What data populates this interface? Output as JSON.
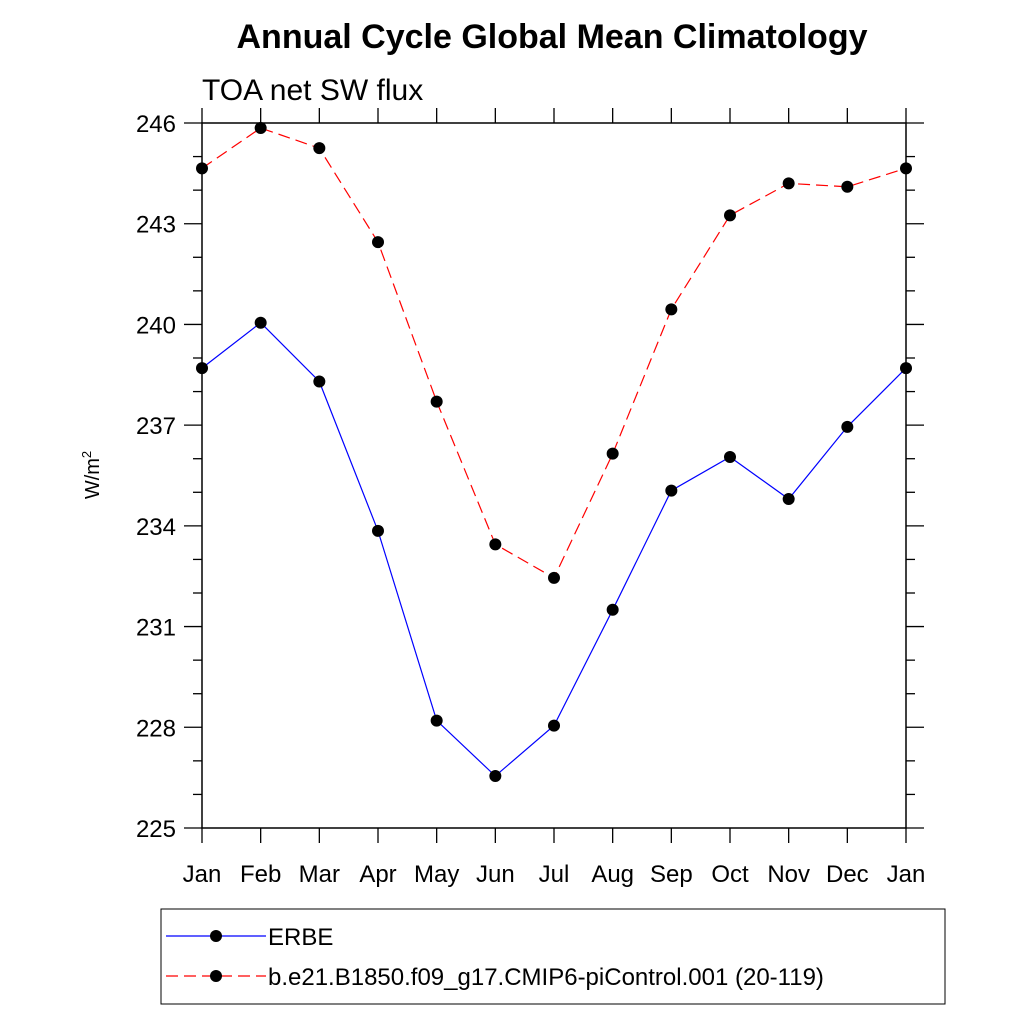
{
  "chart_data": {
    "type": "line",
    "title": "Annual Cycle Global Mean Climatology",
    "subtitle": "TOA net SW flux",
    "ylabel_base": "W/m",
    "ylabel_exp": "2",
    "xlabel": "",
    "categories": [
      "Jan",
      "Feb",
      "Mar",
      "Apr",
      "May",
      "Jun",
      "Jul",
      "Aug",
      "Sep",
      "Oct",
      "Nov",
      "Dec",
      "Jan"
    ],
    "ylim": [
      225,
      246
    ],
    "yticks": [
      225,
      228,
      231,
      234,
      237,
      240,
      243,
      246
    ],
    "ytick_labels": [
      "225",
      "228",
      "231",
      "234",
      "237",
      "240",
      "243",
      "246"
    ],
    "grid": false,
    "legend_position": "bottom",
    "series": [
      {
        "name": "ERBE",
        "color": "#0000ff",
        "line_style": "solid",
        "values": [
          238.7,
          240.05,
          238.3,
          233.85,
          228.2,
          226.55,
          228.05,
          231.5,
          235.05,
          236.05,
          234.8,
          236.95,
          238.7
        ]
      },
      {
        "name": "b.e21.B1850.f09_g17.CMIP6-piControl.001 (20-119)",
        "color": "#ff0000",
        "line_style": "dashed",
        "values": [
          244.65,
          245.85,
          245.25,
          242.45,
          237.7,
          233.45,
          232.45,
          236.15,
          240.45,
          243.25,
          244.2,
          244.1,
          244.65
        ]
      }
    ]
  }
}
